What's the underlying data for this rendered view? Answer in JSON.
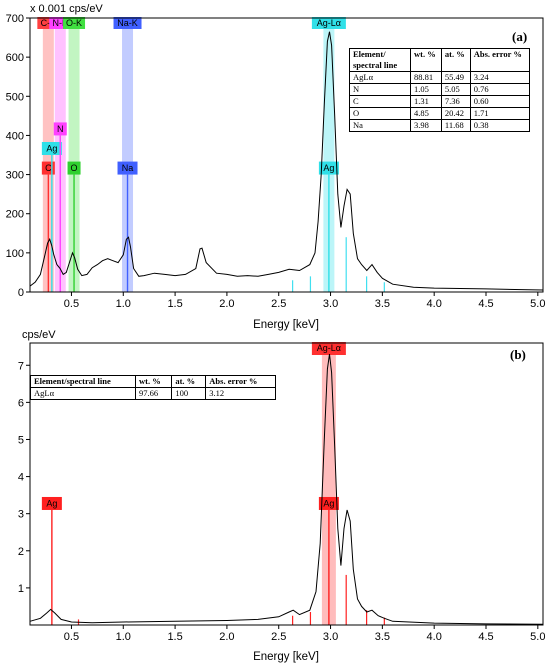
{
  "chart_data": [
    {
      "type": "line",
      "panel_label": "(a)",
      "unit_label": "x 0.001 cps/eV",
      "xlabel": "Energy [keV]",
      "xlim": [
        0.1,
        5.05
      ],
      "ylim": [
        0,
        700
      ],
      "x_ticks": [
        0.5,
        1.0,
        1.5,
        2.0,
        2.5,
        3.0,
        3.5,
        4.0,
        4.5,
        5.0
      ],
      "x_tick_labels": [
        "0.5",
        "1.0",
        "1.5",
        "2.0",
        "2.5",
        "3.0",
        "3.5",
        "4.0",
        "4.5",
        "5.0"
      ],
      "y_ticks": [
        0,
        100,
        200,
        300,
        400,
        500,
        600,
        700
      ],
      "y_tick_labels": [
        "0",
        "100",
        "200",
        "300",
        "400",
        "500",
        "600",
        "700"
      ],
      "spectrum": [
        [
          0.1,
          15
        ],
        [
          0.15,
          25
        ],
        [
          0.2,
          45
        ],
        [
          0.24,
          90
        ],
        [
          0.27,
          125
        ],
        [
          0.29,
          135
        ],
        [
          0.31,
          118
        ],
        [
          0.33,
          95
        ],
        [
          0.36,
          70
        ],
        [
          0.39,
          60
        ],
        [
          0.42,
          45
        ],
        [
          0.45,
          50
        ],
        [
          0.48,
          75
        ],
        [
          0.51,
          100
        ],
        [
          0.53,
          88
        ],
        [
          0.56,
          58
        ],
        [
          0.6,
          42
        ],
        [
          0.65,
          45
        ],
        [
          0.7,
          62
        ],
        [
          0.75,
          70
        ],
        [
          0.8,
          80
        ],
        [
          0.85,
          85
        ],
        [
          0.9,
          80
        ],
        [
          0.95,
          75
        ],
        [
          1.0,
          95
        ],
        [
          1.03,
          135
        ],
        [
          1.05,
          140
        ],
        [
          1.07,
          115
        ],
        [
          1.1,
          60
        ],
        [
          1.15,
          40
        ],
        [
          1.2,
          42
        ],
        [
          1.3,
          48
        ],
        [
          1.4,
          45
        ],
        [
          1.5,
          42
        ],
        [
          1.6,
          45
        ],
        [
          1.7,
          60
        ],
        [
          1.74,
          110
        ],
        [
          1.76,
          112
        ],
        [
          1.8,
          75
        ],
        [
          1.9,
          48
        ],
        [
          2.0,
          45
        ],
        [
          2.1,
          40
        ],
        [
          2.2,
          42
        ],
        [
          2.3,
          40
        ],
        [
          2.4,
          45
        ],
        [
          2.5,
          50
        ],
        [
          2.6,
          58
        ],
        [
          2.7,
          55
        ],
        [
          2.8,
          70
        ],
        [
          2.85,
          100
        ],
        [
          2.88,
          180
        ],
        [
          2.91,
          300
        ],
        [
          2.94,
          480
        ],
        [
          2.97,
          640
        ],
        [
          2.99,
          665
        ],
        [
          3.01,
          630
        ],
        [
          3.04,
          450
        ],
        [
          3.07,
          250
        ],
        [
          3.1,
          165
        ],
        [
          3.13,
          220
        ],
        [
          3.16,
          262
        ],
        [
          3.19,
          250
        ],
        [
          3.22,
          150
        ],
        [
          3.26,
          85
        ],
        [
          3.3,
          70
        ],
        [
          3.35,
          55
        ],
        [
          3.4,
          70
        ],
        [
          3.45,
          50
        ],
        [
          3.5,
          35
        ],
        [
          3.6,
          20
        ],
        [
          3.8,
          12
        ],
        [
          4.0,
          10
        ],
        [
          4.5,
          8
        ],
        [
          5.05,
          5
        ]
      ],
      "element_bands": [
        {
          "label": "C-K",
          "x": 0.277,
          "color": "#ff4040"
        },
        {
          "label": "N-K",
          "x": 0.392,
          "color": "#ff40ff"
        },
        {
          "label": "O-K",
          "x": 0.525,
          "color": "#40e040"
        },
        {
          "label": "Na-K",
          "x": 1.041,
          "color": "#4060ff"
        },
        {
          "label": "Ag-Lα",
          "x": 2.984,
          "color": "#30e0e8"
        }
      ],
      "markers": [
        {
          "label": "C",
          "x": 0.277,
          "y": 300,
          "color": "#ff3030"
        },
        {
          "label": "Ag",
          "x": 0.311,
          "y": 350,
          "color": "#30e0e8"
        },
        {
          "label": "N",
          "x": 0.392,
          "y": 400,
          "color": "#ff40ff"
        },
        {
          "label": "O",
          "x": 0.525,
          "y": 300,
          "color": "#30d030"
        },
        {
          "label": "Na",
          "x": 1.041,
          "y": 300,
          "color": "#4060ff"
        },
        {
          "label": "Ag",
          "x": 2.984,
          "y": 300,
          "color": "#30e0e8"
        }
      ],
      "minor_lines": [
        {
          "x": 2.634,
          "y": 30
        },
        {
          "x": 2.806,
          "y": 40
        },
        {
          "x": 3.151,
          "y": 140
        },
        {
          "x": 3.348,
          "y": 40
        },
        {
          "x": 3.519,
          "y": 25
        }
      ],
      "table": {
        "headers": [
          "Element/ spectral line",
          "wt. %",
          "at. %",
          "Abs. error %"
        ],
        "rows": [
          [
            "AgLα",
            "88.81",
            "55.49",
            "3.24"
          ],
          [
            "N",
            "1.05",
            "5.05",
            "0.76"
          ],
          [
            "C",
            "1.31",
            "7.36",
            "0.60"
          ],
          [
            "O",
            "4.85",
            "20.42",
            "1.71"
          ],
          [
            "Na",
            "3.98",
            "11.68",
            "0.38"
          ]
        ]
      }
    },
    {
      "type": "line",
      "panel_label": "(b)",
      "unit_label": "cps/eV",
      "xlabel": "Energy [keV]",
      "xlim": [
        0.1,
        5.05
      ],
      "ylim": [
        0,
        7.6
      ],
      "x_ticks": [
        0.5,
        1.0,
        1.5,
        2.0,
        2.5,
        3.0,
        3.5,
        4.0,
        4.5,
        5.0
      ],
      "x_tick_labels": [
        "0.5",
        "1.0",
        "1.5",
        "2.0",
        "2.5",
        "3.0",
        "3.5",
        "4.0",
        "4.5",
        "5.0"
      ],
      "y_ticks": [
        1,
        2,
        3,
        4,
        5,
        6,
        7
      ],
      "y_tick_labels": [
        "1",
        "2",
        "3",
        "4",
        "5",
        "6",
        "7"
      ],
      "spectrum": [
        [
          0.1,
          0.1
        ],
        [
          0.2,
          0.18
        ],
        [
          0.26,
          0.32
        ],
        [
          0.3,
          0.42
        ],
        [
          0.34,
          0.32
        ],
        [
          0.4,
          0.15
        ],
        [
          0.5,
          0.08
        ],
        [
          0.7,
          0.06
        ],
        [
          1.0,
          0.08
        ],
        [
          1.5,
          0.1
        ],
        [
          2.0,
          0.12
        ],
        [
          2.3,
          0.15
        ],
        [
          2.5,
          0.22
        ],
        [
          2.6,
          0.35
        ],
        [
          2.64,
          0.4
        ],
        [
          2.7,
          0.28
        ],
        [
          2.8,
          0.4
        ],
        [
          2.86,
          0.9
        ],
        [
          2.9,
          2.2
        ],
        [
          2.94,
          5.0
        ],
        [
          2.97,
          6.9
        ],
        [
          2.99,
          7.3
        ],
        [
          3.01,
          6.8
        ],
        [
          3.04,
          4.8
        ],
        [
          3.07,
          2.6
        ],
        [
          3.1,
          1.6
        ],
        [
          3.13,
          2.6
        ],
        [
          3.16,
          3.1
        ],
        [
          3.19,
          2.8
        ],
        [
          3.22,
          1.5
        ],
        [
          3.26,
          0.7
        ],
        [
          3.3,
          0.5
        ],
        [
          3.35,
          0.35
        ],
        [
          3.4,
          0.4
        ],
        [
          3.46,
          0.25
        ],
        [
          3.52,
          0.18
        ],
        [
          3.6,
          0.1
        ],
        [
          4.0,
          0.05
        ],
        [
          4.5,
          0.03
        ],
        [
          5.05,
          0.02
        ]
      ],
      "element_bands": [
        {
          "label": "Ag-Lα",
          "x": 2.984,
          "color": "#ff3030"
        }
      ],
      "markers": [
        {
          "label": "Ag",
          "x": 0.311,
          "y": 3.1,
          "color": "#ff2020"
        },
        {
          "label": "Ag",
          "x": 2.984,
          "y": 3.1,
          "color": "#ff2020"
        }
      ],
      "minor_lines": [
        {
          "x": 0.568,
          "y": 0.15
        },
        {
          "x": 2.634,
          "y": 0.25
        },
        {
          "x": 2.806,
          "y": 0.35
        },
        {
          "x": 3.151,
          "y": 1.35
        },
        {
          "x": 3.348,
          "y": 0.4
        },
        {
          "x": 3.519,
          "y": 0.2
        }
      ],
      "table": {
        "headers": [
          "Element/spectral line",
          "wt. %",
          "at. %",
          "Abs. error %"
        ],
        "rows": [
          [
            "AgLα",
            "97.66",
            "100",
            "3.12"
          ]
        ]
      }
    }
  ]
}
